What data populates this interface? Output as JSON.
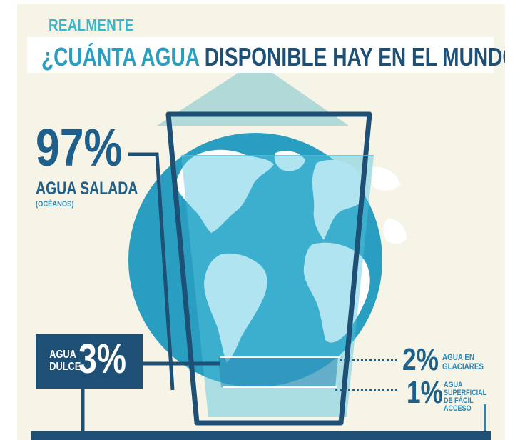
{
  "header": {
    "kicker": "REALMENTE",
    "title_accent": "¿CUÁNTA AGUA",
    "title_rest": " DISPONIBLE HAY EN EL MUNDO?"
  },
  "salt": {
    "percent": "97%",
    "label": "AGUA SALADA",
    "sublabel": "(OCÉANOS)"
  },
  "fresh": {
    "label_line1": "AGUA",
    "label_line2": "DULCE",
    "percent": "3%"
  },
  "glaciers": {
    "percent": "2%",
    "label_line1": "AGUA EN",
    "label_line2": "GLACIARES"
  },
  "surface": {
    "percent": "1%",
    "label_line1": "AGUA",
    "label_line2": "SUPERFICIAL",
    "label_line3": "DE FÁCIL",
    "label_line4": "ACCESO"
  },
  "colors": {
    "background": "#f6f4e7",
    "navy": "#1e4f74",
    "ocean": "#2a9ec0",
    "water": "#4fc3dd",
    "light_beam": "#a8d6d5",
    "land": "#ffffff"
  },
  "icons": [
    "water-glass-icon",
    "earth-globe-icon",
    "light-beam"
  ]
}
